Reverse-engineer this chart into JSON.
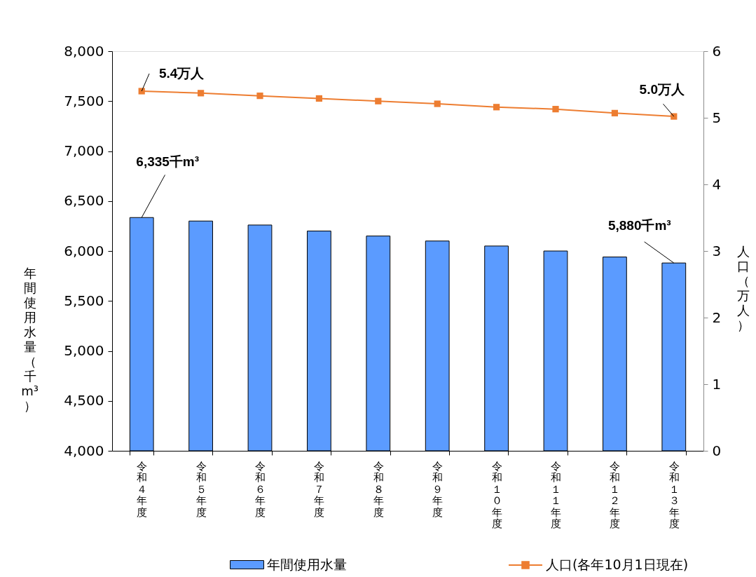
{
  "chart_data": {
    "type": "bar",
    "categories": [
      "令和４年度",
      "令和５年度",
      "令和６年度",
      "令和７年度",
      "令和８年度",
      "令和９年度",
      "令和１０年度",
      "令和１１年度",
      "令和１２年度",
      "令和１３年度"
    ],
    "ylabel": "年間使用水量（千m³）",
    "y2label": "人口（万人）",
    "ylim": [
      4000,
      8000
    ],
    "yticks": [
      {
        "value": 4000,
        "label": "4,000"
      },
      {
        "value": 4500,
        "label": "4,500"
      },
      {
        "value": 5000,
        "label": "5,000"
      },
      {
        "value": 5500,
        "label": "5,500"
      },
      {
        "value": 6000,
        "label": "6,000"
      },
      {
        "value": 6500,
        "label": "6,500"
      },
      {
        "value": 7000,
        "label": "7,000"
      },
      {
        "value": 7500,
        "label": "7,500"
      },
      {
        "value": 8000,
        "label": "8,000"
      }
    ],
    "y2lim": [
      0,
      6
    ],
    "y2ticks": [
      0,
      1,
      2,
      3,
      4,
      5,
      6
    ],
    "series": [
      {
        "name": "年間使用水量",
        "color": "#5b9bff",
        "values": [
          6335,
          6300,
          6260,
          6200,
          6150,
          6100,
          6050,
          6000,
          5940,
          5880
        ],
        "value_labels": [
          "6,335千m³",
          null,
          null,
          null,
          null,
          null,
          null,
          null,
          null,
          "5,880千m³"
        ]
      },
      {
        "name": "人口(各年10月1日現在)",
        "type": "line",
        "axis": "y2",
        "color": "#ed7d31",
        "marker": "square",
        "values": [
          5.4,
          5.37,
          5.33,
          5.29,
          5.25,
          5.21,
          5.16,
          5.13,
          5.07,
          5.02
        ],
        "value_labels": [
          "5.4万人",
          null,
          null,
          null,
          null,
          null,
          null,
          null,
          null,
          "5.0万人"
        ]
      }
    ],
    "legend": "bottom",
    "grid": false
  }
}
